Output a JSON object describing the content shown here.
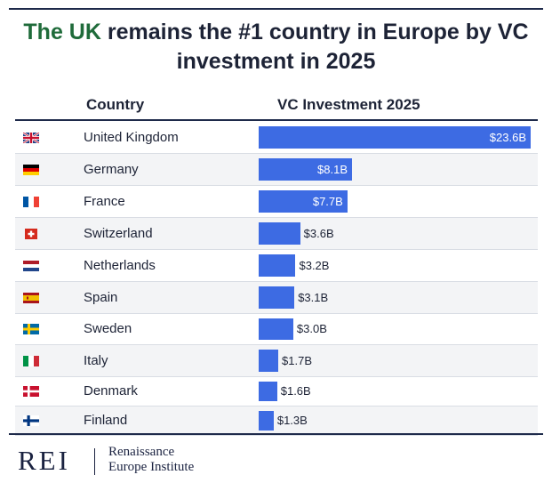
{
  "title": {
    "highlight": "The UK",
    "rest_line1": " remains the #1 country in Europe by VC",
    "line2": "investment in 2025"
  },
  "headers": {
    "country": "Country",
    "vc": "VC Investment 2025"
  },
  "chart_data": {
    "type": "bar",
    "orientation": "horizontal",
    "title": "The UK remains the #1 country in Europe by VC investment in 2025",
    "xlabel": "VC Investment 2025",
    "ylabel": "Country",
    "unit": "billion USD",
    "xlim": [
      0,
      23.6
    ],
    "categories": [
      "United Kingdom",
      "Germany",
      "France",
      "Switzerland",
      "Netherlands",
      "Spain",
      "Sweden",
      "Italy",
      "Denmark",
      "Finland"
    ],
    "values": [
      23.6,
      8.1,
      7.7,
      3.6,
      3.2,
      3.1,
      3.0,
      1.7,
      1.6,
      1.3
    ],
    "labels": [
      "$23.6B",
      "$8.1B",
      "$7.7B",
      "$3.6B",
      "$3.2B",
      "$3.1B",
      "$3.0B",
      "$1.7B",
      "$1.6B",
      "$1.3B"
    ],
    "flags": [
      "uk-flag-icon",
      "germany-flag-icon",
      "france-flag-icon",
      "switzerland-flag-icon",
      "netherlands-flag-icon",
      "spain-flag-icon",
      "sweden-flag-icon",
      "italy-flag-icon",
      "denmark-flag-icon",
      "finland-flag-icon"
    ],
    "bar_color": "#3d6be3",
    "grid": false,
    "legend": "none"
  },
  "footer": {
    "logo_abbr": "REI",
    "org_line1": "Renaissance",
    "org_line2": "Europe Institute"
  },
  "colors": {
    "title_highlight": "#1f6b3a",
    "title_text": "#1d2336",
    "bar": "#3d6be3",
    "rule": "#1e2a4a",
    "row_alt": "#f3f4f6"
  }
}
